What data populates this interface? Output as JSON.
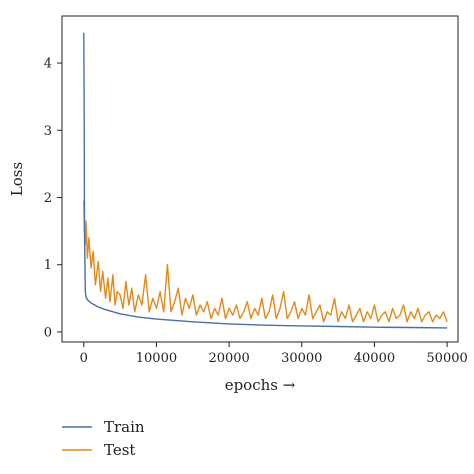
{
  "chart_data": {
    "type": "line",
    "title": "",
    "xlabel": "epochs →",
    "ylabel": "Loss",
    "xlim": [
      -3000,
      51500
    ],
    "ylim": [
      -0.15,
      4.7
    ],
    "x_ticks": [
      0,
      10000,
      20000,
      30000,
      40000,
      50000
    ],
    "y_ticks": [
      0,
      1,
      2,
      3,
      4
    ],
    "grid": false,
    "legend_position": "bottom-left",
    "series": [
      {
        "name": "Train",
        "color": "#4a6fa5",
        "x": [
          0,
          50,
          100,
          200,
          300,
          500,
          800,
          1000,
          2000,
          3000,
          5000,
          7500,
          10000,
          15000,
          20000,
          25000,
          30000,
          35000,
          40000,
          45000,
          50000
        ],
        "y": [
          4.45,
          3.2,
          1.5,
          0.6,
          0.52,
          0.48,
          0.45,
          0.43,
          0.37,
          0.33,
          0.27,
          0.22,
          0.19,
          0.15,
          0.12,
          0.1,
          0.09,
          0.08,
          0.07,
          0.065,
          0.06
        ]
      },
      {
        "name": "Test",
        "color": "#e08a1e",
        "x": [
          0,
          100,
          200,
          300,
          500,
          700,
          1000,
          1300,
          1600,
          2000,
          2300,
          2600,
          3000,
          3300,
          3600,
          4000,
          4300,
          4600,
          5000,
          5400,
          5800,
          6200,
          6600,
          7000,
          7500,
          8000,
          8500,
          9000,
          9500,
          10000,
          10500,
          11000,
          11500,
          12000,
          12500,
          13000,
          13500,
          14000,
          14500,
          15000,
          15500,
          16000,
          16500,
          17000,
          17500,
          18000,
          18500,
          19000,
          19500,
          20000,
          20500,
          21000,
          21500,
          22000,
          22500,
          23000,
          23500,
          24000,
          24500,
          25000,
          25500,
          26000,
          26500,
          27000,
          27500,
          28000,
          28500,
          29000,
          29500,
          30000,
          30500,
          31000,
          31500,
          32000,
          32500,
          33000,
          33500,
          34000,
          34500,
          35000,
          35500,
          36000,
          36500,
          37000,
          37500,
          38000,
          38500,
          39000,
          39500,
          40000,
          40500,
          41000,
          41500,
          42000,
          42500,
          43000,
          43500,
          44000,
          44500,
          45000,
          45500,
          46000,
          46500,
          47000,
          47500,
          48000,
          48500,
          49000,
          49500,
          50000
        ],
        "y": [
          1.95,
          1.5,
          1.3,
          1.65,
          1.1,
          1.4,
          0.95,
          1.2,
          0.7,
          1.05,
          0.6,
          0.9,
          0.5,
          0.8,
          0.45,
          0.85,
          0.4,
          0.6,
          0.55,
          0.35,
          0.75,
          0.4,
          0.65,
          0.3,
          0.55,
          0.4,
          0.85,
          0.3,
          0.5,
          0.35,
          0.6,
          0.3,
          1.0,
          0.3,
          0.45,
          0.65,
          0.25,
          0.5,
          0.35,
          0.55,
          0.25,
          0.4,
          0.3,
          0.45,
          0.2,
          0.35,
          0.25,
          0.5,
          0.2,
          0.35,
          0.25,
          0.4,
          0.2,
          0.3,
          0.45,
          0.2,
          0.35,
          0.25,
          0.5,
          0.2,
          0.3,
          0.55,
          0.2,
          0.35,
          0.6,
          0.2,
          0.3,
          0.45,
          0.2,
          0.35,
          0.25,
          0.55,
          0.2,
          0.3,
          0.4,
          0.15,
          0.3,
          0.25,
          0.5,
          0.15,
          0.3,
          0.2,
          0.4,
          0.15,
          0.25,
          0.35,
          0.15,
          0.3,
          0.2,
          0.4,
          0.15,
          0.25,
          0.3,
          0.15,
          0.35,
          0.2,
          0.25,
          0.4,
          0.15,
          0.3,
          0.2,
          0.35,
          0.15,
          0.25,
          0.3,
          0.15,
          0.25,
          0.2,
          0.3,
          0.15
        ]
      }
    ]
  }
}
